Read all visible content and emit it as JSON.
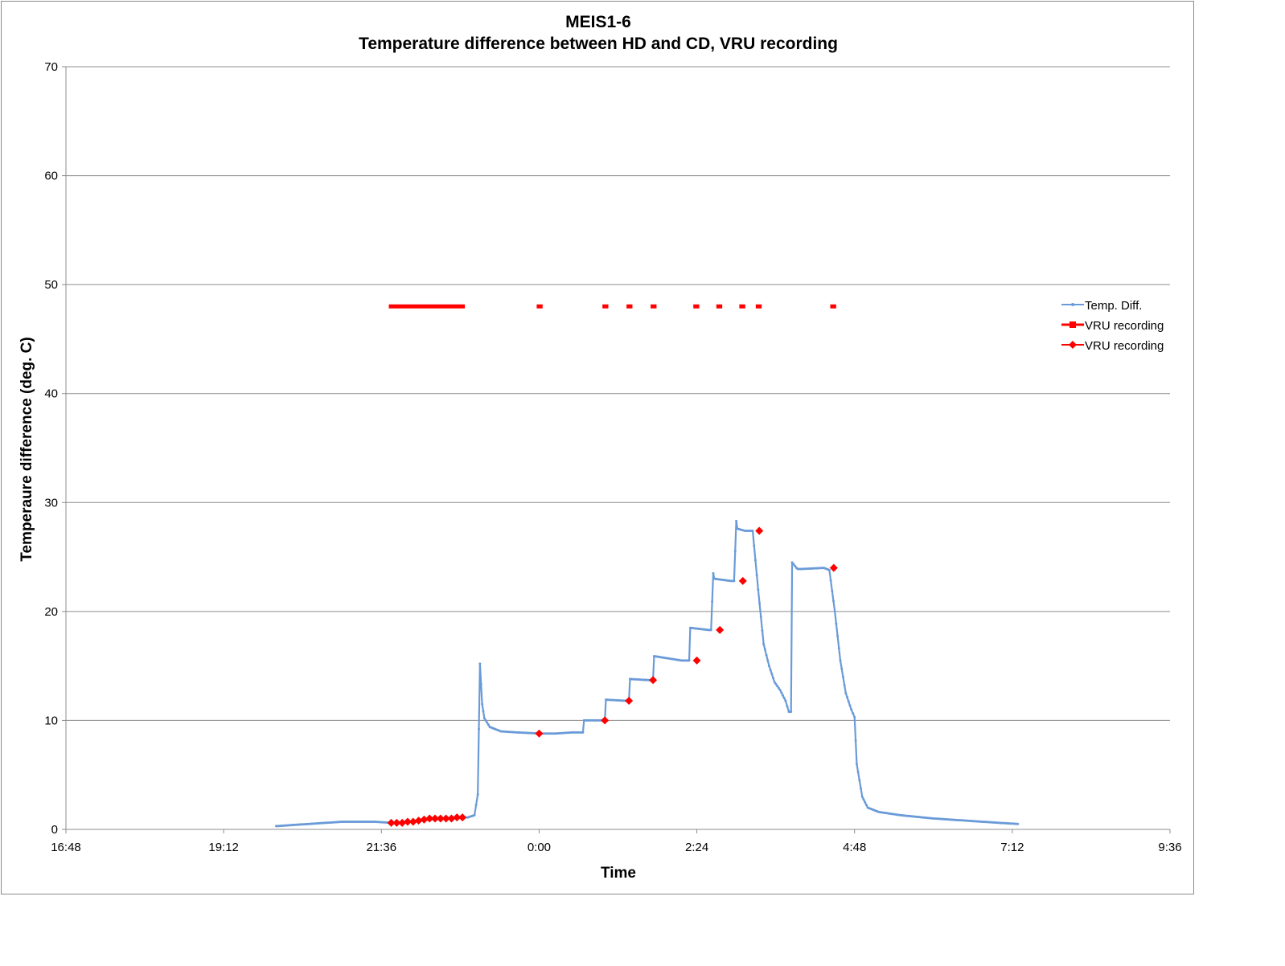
{
  "chart_data": {
    "type": "line",
    "title": "MEIS1-6",
    "subtitle": "Temperature difference between  HD and CD, VRU recording",
    "xlabel": "Time",
    "ylabel": "Temperaure difference (deg. C)",
    "xlim": [
      "16:48",
      "9:36"
    ],
    "x_ticks": [
      "16:48",
      "19:12",
      "21:36",
      "0:00",
      "2:24",
      "4:48",
      "7:12",
      "9:36"
    ],
    "ylim": [
      0,
      70
    ],
    "y_ticks": [
      0,
      10,
      20,
      30,
      40,
      50,
      60,
      70
    ],
    "grid": "horizontal",
    "legend_position": "right",
    "colors": {
      "temp": "#6a9bd8",
      "vru": "#ff0000",
      "grid": "#8c8c8c",
      "axis": "#8c8c8c"
    },
    "series": [
      {
        "name": "Temp. Diff.",
        "marker": "dot",
        "x": [
          "20:00",
          "20:30",
          "21:00",
          "21:30",
          "21:45",
          "22:10",
          "22:30",
          "22:55",
          "23:01",
          "23:04",
          "23:06",
          "23:08",
          "23:10",
          "23:15",
          "23:25",
          "23:40",
          "0:00",
          "0:15",
          "0:30",
          "0:40",
          "0:41",
          "0:55",
          "1:00",
          "1:01",
          "1:20",
          "1:22",
          "1:23",
          "1:40",
          "1:44",
          "1:45",
          "2:10",
          "2:15",
          "2:17",
          "2:18",
          "2:35",
          "2:37",
          "2:39",
          "2:40",
          "2:55",
          "2:58",
          "3:00",
          "3:01",
          "3:08",
          "3:15",
          "3:20",
          "3:25",
          "3:30",
          "3:35",
          "3:40",
          "3:45",
          "3:48",
          "3:50",
          "3:51",
          "3:55",
          "3:56",
          "4:00",
          "4:20",
          "4:25",
          "4:30",
          "4:35",
          "4:40",
          "4:45",
          "4:48",
          "4:50",
          "4:55",
          "5:00",
          "5:10",
          "5:30",
          "6:00",
          "6:30",
          "7:00",
          "7:17"
        ],
        "y": [
          0.3,
          0.5,
          0.7,
          0.7,
          0.6,
          0.8,
          1.0,
          1.1,
          1.3,
          3.2,
          15.2,
          11.5,
          10.2,
          9.4,
          9.0,
          8.9,
          8.8,
          8.8,
          8.9,
          8.9,
          10.0,
          10.0,
          10.0,
          11.9,
          11.8,
          11.8,
          13.8,
          13.7,
          13.7,
          15.9,
          15.5,
          15.5,
          15.5,
          18.5,
          18.3,
          18.3,
          23.5,
          23.0,
          22.8,
          22.8,
          28.3,
          27.6,
          27.4,
          27.4,
          22.0,
          17.0,
          15.0,
          13.5,
          12.8,
          11.8,
          10.8,
          10.8,
          24.5,
          24.0,
          23.9,
          23.9,
          24.0,
          23.8,
          20.0,
          15.5,
          12.5,
          11.0,
          10.3,
          6.0,
          3.0,
          2.0,
          1.6,
          1.3,
          1.0,
          0.8,
          0.6,
          0.5
        ]
      },
      {
        "name": "VRU recording",
        "marker": "square",
        "segments": [
          [
            "21:45",
            "22:50"
          ],
          [
            "0:00",
            "0:01"
          ],
          [
            "1:00",
            "1:01"
          ],
          [
            "1:22",
            "1:23"
          ],
          [
            "1:44",
            "1:45"
          ],
          [
            "2:23",
            "2:24"
          ],
          [
            "2:44",
            "2:45"
          ],
          [
            "3:05",
            "3:06"
          ],
          [
            "3:20",
            "3:21"
          ],
          [
            "4:28",
            "4:29"
          ]
        ],
        "y": 48
      },
      {
        "name": "VRU recording",
        "marker": "diamond",
        "x": [
          "21:45",
          "21:50",
          "21:55",
          "22:00",
          "22:05",
          "22:10",
          "22:15",
          "22:20",
          "22:25",
          "22:30",
          "22:35",
          "22:40",
          "22:45",
          "22:50",
          "0:00",
          "1:00",
          "1:22",
          "1:44",
          "2:24",
          "2:45",
          "3:06",
          "3:21",
          "4:29"
        ],
        "y": [
          0.6,
          0.6,
          0.6,
          0.7,
          0.7,
          0.8,
          0.9,
          1.0,
          1.0,
          1.0,
          1.0,
          1.0,
          1.1,
          1.1,
          8.8,
          10.0,
          11.8,
          13.7,
          15.5,
          18.3,
          22.8,
          27.4,
          24.0
        ]
      }
    ]
  }
}
